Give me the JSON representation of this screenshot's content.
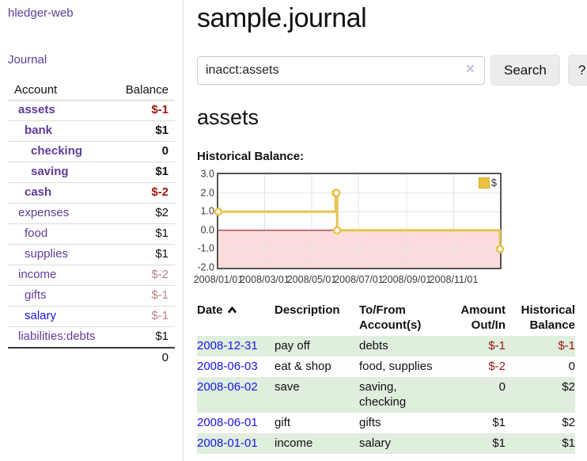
{
  "sidebar": {
    "app_title": "hledger-web",
    "nav": {
      "journal_label": "Journal"
    },
    "accounts_table": {
      "col_account": "Account",
      "col_balance": "Balance",
      "rows": [
        {
          "name": "assets",
          "balance": "$-1",
          "indent": 1,
          "bold": true,
          "balance_style": "neg"
        },
        {
          "name": "bank",
          "balance": "$1",
          "indent": 2,
          "bold": true,
          "balance_style": ""
        },
        {
          "name": "checking",
          "balance": "0",
          "indent": 3,
          "bold": true,
          "balance_style": ""
        },
        {
          "name": "saving",
          "balance": "$1",
          "indent": 3,
          "bold": true,
          "balance_style": ""
        },
        {
          "name": "cash",
          "balance": "$-2",
          "indent": 2,
          "bold": true,
          "balance_style": "neg"
        },
        {
          "name": "expenses",
          "balance": "$2",
          "indent": 1,
          "bold": false,
          "balance_style": ""
        },
        {
          "name": "food",
          "balance": "$1",
          "indent": 2,
          "bold": false,
          "balance_style": ""
        },
        {
          "name": "supplies",
          "balance": "$1",
          "indent": 2,
          "bold": false,
          "balance_style": ""
        },
        {
          "name": "income",
          "balance": "$-2",
          "indent": 1,
          "bold": false,
          "balance_style": "neg-muted"
        },
        {
          "name": "gifts",
          "balance": "$-1",
          "indent": 2,
          "bold": false,
          "balance_style": "neg-muted"
        },
        {
          "name": "salary",
          "balance": "$-1",
          "indent": 2,
          "bold": false,
          "balance_style": "neg-muted",
          "name_style": "blue"
        },
        {
          "name": "liabilities:debts",
          "balance": "$1",
          "indent": 1,
          "bold": false,
          "balance_style": ""
        }
      ],
      "total": "0"
    }
  },
  "header": {
    "title": "sample.journal"
  },
  "search": {
    "query": "inacct:assets",
    "clear_icon": "×",
    "button_label": "Search",
    "help_label": "?"
  },
  "account_page": {
    "heading": "assets",
    "chart_label": "Historical Balance:"
  },
  "chart_data": {
    "type": "line",
    "style": "step",
    "title": "Historical Balance",
    "x_range_days": 365,
    "ylim": [
      -2,
      3
    ],
    "grid": true,
    "legend_position": "top-right",
    "legend": {
      "label": "$",
      "color": "#edc240"
    },
    "series": [
      {
        "name": "$",
        "points": [
          {
            "date": "2008-01-01",
            "day": 0,
            "value": 1
          },
          {
            "date": "2008-06-01",
            "day": 152,
            "value": 2
          },
          {
            "date": "2008-06-02",
            "day": 153,
            "value": 2
          },
          {
            "date": "2008-06-03",
            "day": 154,
            "value": 0
          },
          {
            "date": "2008-12-31",
            "day": 365,
            "value": -1
          }
        ]
      }
    ],
    "y_ticks": [
      {
        "label": "3.0",
        "value": 3
      },
      {
        "label": "2.0",
        "value": 2
      },
      {
        "label": "1.0",
        "value": 1
      },
      {
        "label": "0.0",
        "value": 0
      },
      {
        "label": "-1.0",
        "value": -1
      },
      {
        "label": "-2.0",
        "value": -2
      }
    ],
    "x_ticks": [
      {
        "label": "2008/01/01",
        "day": 0
      },
      {
        "label": "2008/03/01",
        "day": 60
      },
      {
        "label": "2008/05/01",
        "day": 121
      },
      {
        "label": "2008/07/01",
        "day": 182
      },
      {
        "label": "2008/09/01",
        "day": 244
      },
      {
        "label": "2008/11/01",
        "day": 305
      }
    ],
    "colors": {
      "line": "#e9c34f",
      "marker_fill": "#ffffff",
      "negative_fill": "#fbdcdc",
      "zero_line": "#8b0000",
      "grid": "#e4e4e4"
    }
  },
  "table": {
    "headers": {
      "date": "Date",
      "description": "Description",
      "accounts_line1": "To/From",
      "accounts_line2": "Account(s)",
      "amount_line1": "Amount",
      "amount_line2": "Out/In",
      "balance_line1": "Historical",
      "balance_line2": "Balance"
    },
    "rows": [
      {
        "date": "2008-12-31",
        "description": "pay off",
        "accounts": "debts",
        "amount": "$-1",
        "amount_style": "neg",
        "balance": "$-1",
        "balance_style": "neg"
      },
      {
        "date": "2008-06-03",
        "description": "eat & shop",
        "accounts": "food, supplies",
        "amount": "$-2",
        "amount_style": "neg",
        "balance": "0",
        "balance_style": ""
      },
      {
        "date": "2008-06-02",
        "description": "save",
        "accounts": "saving, checking",
        "amount": "0",
        "amount_style": "",
        "balance": "$2",
        "balance_style": ""
      },
      {
        "date": "2008-06-01",
        "description": "gift",
        "accounts": "gifts",
        "amount": "$1",
        "amount_style": "",
        "balance": "$2",
        "balance_style": ""
      },
      {
        "date": "2008-01-01",
        "description": "income",
        "accounts": "salary",
        "amount": "$1",
        "amount_style": "",
        "balance": "$1",
        "balance_style": ""
      }
    ]
  }
}
